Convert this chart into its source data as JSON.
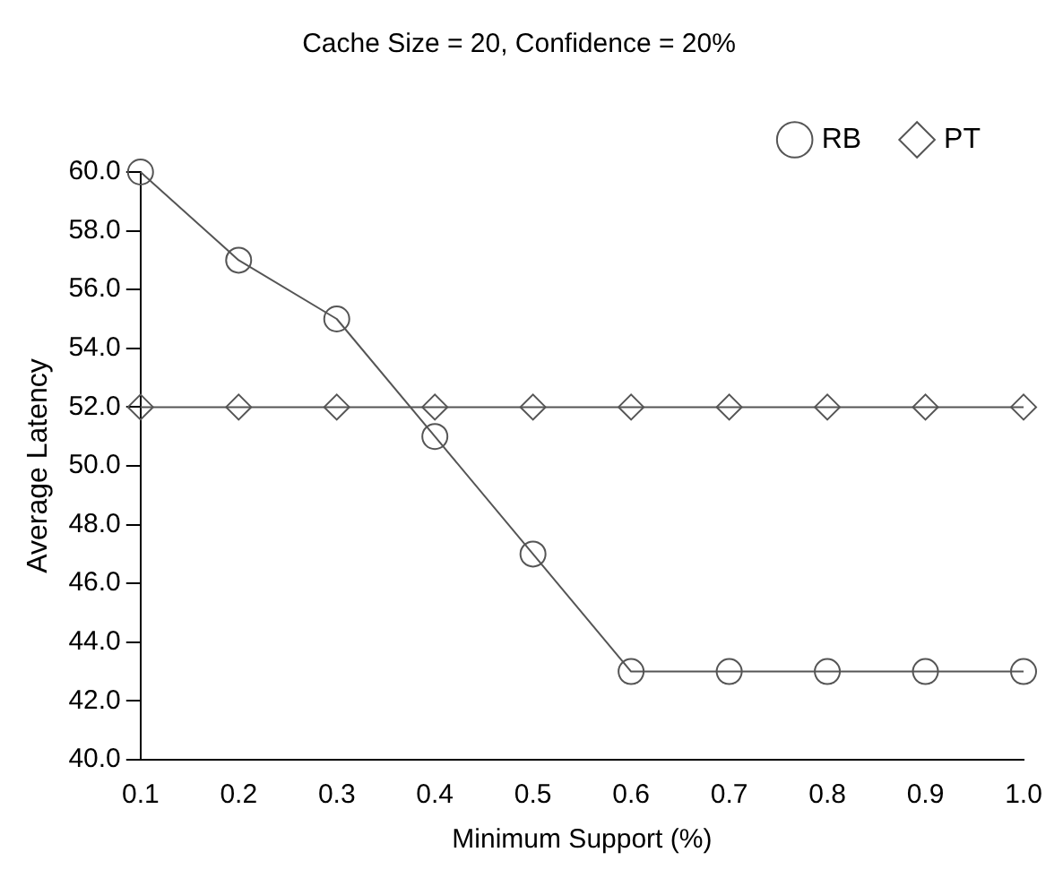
{
  "chart_data": {
    "type": "line",
    "title": "Cache Size = 20, Confidence = 20%",
    "xlabel": "Minimum Support (%)",
    "ylabel": "Average Latency",
    "x": [
      0.1,
      0.2,
      0.3,
      0.4,
      0.5,
      0.6,
      0.7,
      0.8,
      0.9,
      1.0
    ],
    "series": [
      {
        "name": "RB",
        "color": "#555555",
        "marker": "circle",
        "values": [
          60,
          57,
          55,
          51,
          47,
          43,
          43,
          43,
          43,
          43
        ]
      },
      {
        "name": "PT",
        "color": "#555555",
        "marker": "diamond",
        "values": [
          52,
          52,
          52,
          52,
          52,
          52,
          52,
          52,
          52,
          52
        ]
      }
    ],
    "xlim": [
      0.1,
      1.0
    ],
    "xticks": [
      0.1,
      0.2,
      0.3,
      0.4,
      0.5,
      0.6,
      0.7,
      0.8,
      0.9,
      {
        "value": 1.0,
        "label": "1.0"
      }
    ],
    "ylim": [
      40,
      60
    ],
    "yticks": [
      {
        "value": 40,
        "label": "40.0"
      },
      {
        "value": 42,
        "label": "42.0"
      },
      {
        "value": 44,
        "label": "44.0"
      },
      {
        "value": 46,
        "label": "46.0"
      },
      {
        "value": 48,
        "label": "48.0"
      },
      {
        "value": 50,
        "label": "50.0"
      },
      {
        "value": 52,
        "label": "52.0"
      },
      {
        "value": 54,
        "label": "54.0"
      },
      {
        "value": 56,
        "label": "56.0"
      },
      {
        "value": 58,
        "label": "58.0"
      },
      {
        "value": 60,
        "label": "60.0"
      }
    ],
    "grid": false,
    "legend": "top right",
    "line_style": "solid"
  }
}
